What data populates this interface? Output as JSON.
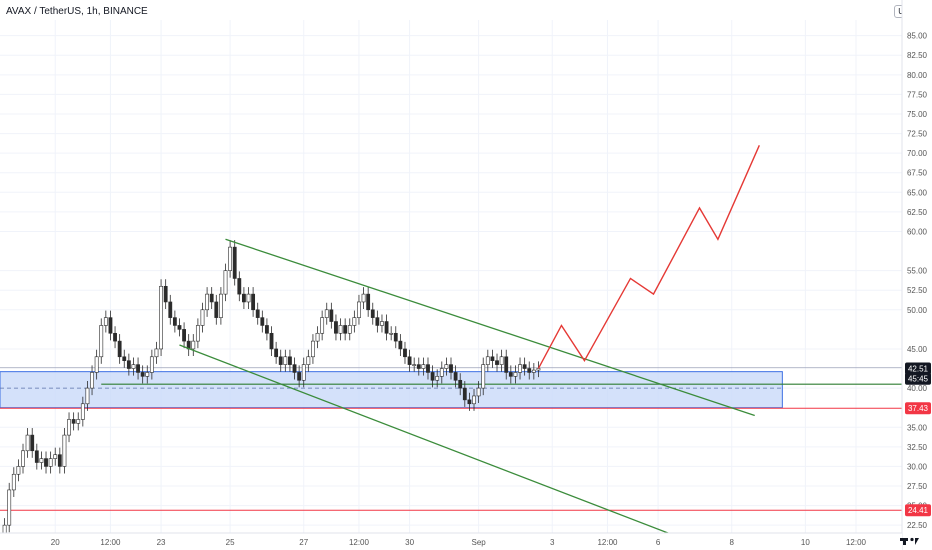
{
  "header": {
    "title": "AVAX / TetherUS, 1h, BINANCE",
    "currency": "USDT"
  },
  "colors": {
    "up": "#2b2b2b",
    "down": "#2b2b2b",
    "channel": "#3b8c3b",
    "projection": "#e53935",
    "support_zone_fill": "#c9d9f9",
    "support_zone_border": "#3d6fe3",
    "resistance_red": "#f23645",
    "price_tag": "#131722"
  },
  "chart_data": {
    "type": "candlestick",
    "y_ticks": [
      "85.00",
      "82.50",
      "80.00",
      "77.50",
      "75.00",
      "72.50",
      "70.00",
      "67.50",
      "65.00",
      "62.50",
      "60.00",
      "55.00",
      "52.50",
      "50.00",
      "45.00",
      "40.00",
      "35.00",
      "32.50",
      "30.00",
      "27.50",
      "25.00",
      "22.50"
    ],
    "y_tick_values": [
      85,
      82.5,
      80,
      77.5,
      75,
      72.5,
      70,
      67.5,
      65,
      62.5,
      60,
      55,
      52.5,
      50,
      45,
      40,
      35,
      32.5,
      30,
      27.5,
      25,
      22.5
    ],
    "x_ticks": [
      "20",
      "12:00",
      "23",
      "25",
      "27",
      "12:00",
      "30",
      "Sep",
      "3",
      "12:00",
      "6",
      "8",
      "10",
      "12:00"
    ],
    "x_tick_positions": [
      12,
      24,
      35,
      50,
      66,
      78,
      89,
      104,
      120,
      132,
      143,
      159,
      175,
      186
    ],
    "x_range": [
      0,
      196
    ],
    "y_range": [
      21.5,
      87
    ],
    "price_tags": [
      {
        "label": "42.51",
        "value": 42.51,
        "style": "dark"
      },
      {
        "label": "45:45",
        "value": 41.2,
        "style": "dark"
      },
      {
        "label": "37.43",
        "value": 37.43,
        "style": "red"
      },
      {
        "label": "24.41",
        "value": 24.41,
        "style": "red"
      }
    ],
    "price_path": [
      [
        0,
        21.5
      ],
      [
        1,
        22.5
      ],
      [
        2,
        27
      ],
      [
        3,
        29
      ],
      [
        4,
        30
      ],
      [
        5,
        32
      ],
      [
        6,
        34
      ],
      [
        7,
        32
      ],
      [
        8,
        30.5
      ],
      [
        9,
        31
      ],
      [
        10,
        30
      ],
      [
        11,
        31
      ],
      [
        12,
        31.5
      ],
      [
        13,
        30
      ],
      [
        14,
        34
      ],
      [
        15,
        36
      ],
      [
        16,
        35.5
      ],
      [
        17,
        36
      ],
      [
        18,
        38
      ],
      [
        19,
        40
      ],
      [
        20,
        42
      ],
      [
        21,
        44
      ],
      [
        22,
        48
      ],
      [
        23,
        49
      ],
      [
        24,
        47
      ],
      [
        25,
        46
      ],
      [
        26,
        44
      ],
      [
        27,
        43.5
      ],
      [
        28,
        42.5
      ],
      [
        29,
        43
      ],
      [
        30,
        42
      ],
      [
        31,
        41.5
      ],
      [
        32,
        42
      ],
      [
        33,
        44
      ],
      [
        34,
        45
      ],
      [
        35,
        53
      ],
      [
        36,
        51
      ],
      [
        37,
        49
      ],
      [
        38,
        48
      ],
      [
        39,
        47.5
      ],
      [
        40,
        46
      ],
      [
        41,
        45
      ],
      [
        42,
        46
      ],
      [
        43,
        48
      ],
      [
        44,
        50
      ],
      [
        45,
        52
      ],
      [
        46,
        51
      ],
      [
        47,
        49
      ],
      [
        48,
        52
      ],
      [
        49,
        55
      ],
      [
        50,
        58
      ],
      [
        51,
        54
      ],
      [
        52,
        52
      ],
      [
        53,
        51
      ],
      [
        54,
        52
      ],
      [
        55,
        50
      ],
      [
        56,
        49
      ],
      [
        57,
        48
      ],
      [
        58,
        47
      ],
      [
        59,
        45
      ],
      [
        60,
        44
      ],
      [
        61,
        43
      ],
      [
        62,
        44
      ],
      [
        63,
        43
      ],
      [
        64,
        42
      ],
      [
        65,
        41
      ],
      [
        66,
        43
      ],
      [
        67,
        44
      ],
      [
        68,
        46
      ],
      [
        69,
        47
      ],
      [
        70,
        49
      ],
      [
        71,
        50
      ],
      [
        72,
        48.5
      ],
      [
        73,
        47
      ],
      [
        74,
        48
      ],
      [
        75,
        47
      ],
      [
        76,
        48
      ],
      [
        77,
        49
      ],
      [
        78,
        51
      ],
      [
        79,
        52
      ],
      [
        80,
        50
      ],
      [
        81,
        49
      ],
      [
        82,
        48
      ],
      [
        83,
        48.5
      ],
      [
        84,
        47
      ],
      [
        85,
        47
      ],
      [
        86,
        46
      ],
      [
        87,
        45
      ],
      [
        88,
        44
      ],
      [
        89,
        43
      ],
      [
        90,
        43
      ],
      [
        91,
        42.5
      ],
      [
        92,
        43
      ],
      [
        93,
        42
      ],
      [
        94,
        41
      ],
      [
        95,
        41.5
      ],
      [
        96,
        42.5
      ],
      [
        97,
        43
      ],
      [
        98,
        42
      ],
      [
        99,
        41
      ],
      [
        100,
        40
      ],
      [
        101,
        38.5
      ],
      [
        102,
        38
      ],
      [
        103,
        39
      ],
      [
        104,
        40
      ],
      [
        105,
        43
      ],
      [
        106,
        44
      ],
      [
        107,
        43.5
      ],
      [
        108,
        43
      ],
      [
        109,
        44
      ],
      [
        110,
        42
      ],
      [
        111,
        41.5
      ],
      [
        112,
        42
      ],
      [
        113,
        43
      ],
      [
        114,
        42.5
      ],
      [
        115,
        42
      ],
      [
        116,
        42.3
      ],
      [
        117,
        42.51
      ]
    ],
    "projection_path": [
      [
        117,
        42.51
      ],
      [
        122,
        48
      ],
      [
        127,
        43.5
      ],
      [
        137,
        54
      ],
      [
        142,
        52
      ],
      [
        152,
        63
      ],
      [
        156,
        59
      ],
      [
        165,
        71
      ]
    ],
    "channel_upper": [
      [
        49,
        59
      ],
      [
        164,
        36.5
      ]
    ],
    "channel_lower": [
      [
        39,
        45.5
      ],
      [
        154,
        19.5
      ]
    ],
    "support_line": [
      [
        22,
        40.5
      ],
      [
        196,
        40.5
      ]
    ],
    "support_zone": {
      "x0": 0,
      "x1": 170,
      "y0": 37.5,
      "y1": 42.1
    },
    "support_dashed": 40.0,
    "red_line_top": 42.6,
    "red_line_37": 37.43,
    "red_line_24": 24.41
  }
}
